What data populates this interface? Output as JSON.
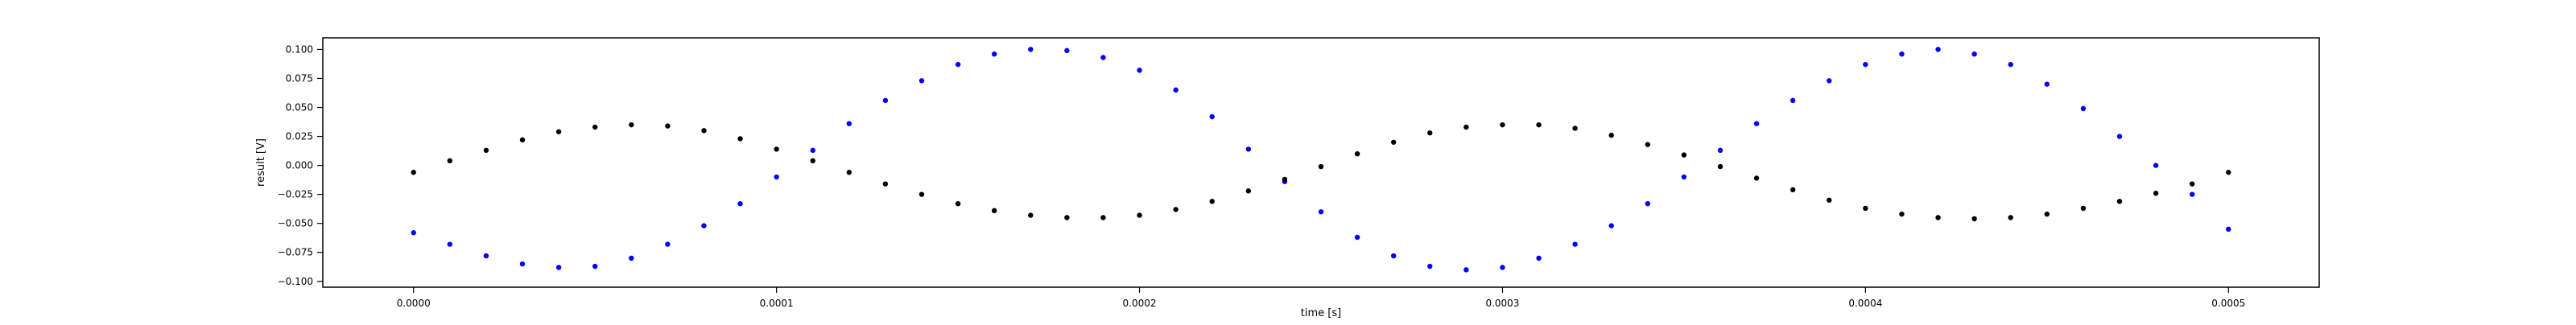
{
  "chart_data": {
    "type": "scatter",
    "title": "",
    "xlabel": "time [s]",
    "ylabel": "result [V]",
    "xlim": [
      -2.5e-05,
      0.000525
    ],
    "ylim": [
      -0.105,
      0.11
    ],
    "x_ticks": [
      "0.0000",
      "0.0001",
      "0.0002",
      "0.0003",
      "0.0004",
      "0.0005"
    ],
    "y_ticks": [
      "0.100",
      "0.075",
      "0.050",
      "0.025",
      "0.000",
      "−0.025",
      "−0.050",
      "−0.075",
      "−0.100"
    ],
    "grid": false,
    "legend": "none",
    "series": [
      {
        "color": "#0000ff",
        "marker": "dot",
        "x": [
          0.0,
          1e-05,
          2e-05,
          3e-05,
          4e-05,
          5e-05,
          6e-05,
          7e-05,
          8e-05,
          9e-05,
          0.0001,
          0.00011,
          0.00012,
          0.00013,
          0.00014,
          0.00015,
          0.00016,
          0.00017,
          0.00018,
          0.00019,
          0.0002,
          0.00021,
          0.00022,
          0.00023,
          0.00024,
          0.00025,
          0.00026,
          0.00027,
          0.00028,
          0.00029,
          0.0003,
          0.00031,
          0.00032,
          0.00033,
          0.00034,
          0.00035,
          0.00036,
          0.00037,
          0.00038,
          0.00039,
          0.0004,
          0.00041,
          0.00042,
          0.00043,
          0.00044,
          0.00045,
          0.00046,
          0.00047,
          0.00048,
          0.00049,
          0.0005
        ],
        "y": [
          -0.058,
          -0.068,
          -0.078,
          -0.085,
          -0.088,
          -0.087,
          -0.08,
          -0.068,
          -0.052,
          -0.033,
          -0.01,
          0.013,
          0.036,
          0.056,
          0.073,
          0.087,
          0.096,
          0.1,
          0.099,
          0.093,
          0.082,
          0.065,
          0.042,
          0.014,
          -0.014,
          -0.04,
          -0.062,
          -0.078,
          -0.087,
          -0.09,
          -0.088,
          -0.08,
          -0.068,
          -0.052,
          -0.033,
          -0.01,
          0.013,
          0.036,
          0.056,
          0.073,
          0.087,
          0.096,
          0.1,
          0.096,
          0.087,
          0.07,
          0.049,
          0.025,
          0.0,
          -0.025,
          -0.055
        ]
      },
      {
        "color": "#000000",
        "marker": "dot",
        "x": [
          0.0,
          1e-05,
          2e-05,
          3e-05,
          4e-05,
          5e-05,
          6e-05,
          7e-05,
          8e-05,
          9e-05,
          0.0001,
          0.00011,
          0.00012,
          0.00013,
          0.00014,
          0.00015,
          0.00016,
          0.00017,
          0.00018,
          0.00019,
          0.0002,
          0.00021,
          0.00022,
          0.00023,
          0.00024,
          0.00025,
          0.00026,
          0.00027,
          0.00028,
          0.00029,
          0.0003,
          0.00031,
          0.00032,
          0.00033,
          0.00034,
          0.00035,
          0.00036,
          0.00037,
          0.00038,
          0.00039,
          0.0004,
          0.00041,
          0.00042,
          0.00043,
          0.00044,
          0.00045,
          0.00046,
          0.00047,
          0.00048,
          0.00049,
          0.0005
        ],
        "y": [
          -0.006,
          0.004,
          0.013,
          0.022,
          0.029,
          0.033,
          0.035,
          0.034,
          0.03,
          0.023,
          0.014,
          0.004,
          -0.006,
          -0.016,
          -0.025,
          -0.033,
          -0.039,
          -0.043,
          -0.045,
          -0.045,
          -0.043,
          -0.038,
          -0.031,
          -0.022,
          -0.012,
          -0.001,
          0.01,
          0.02,
          0.028,
          0.033,
          0.035,
          0.035,
          0.032,
          0.026,
          0.018,
          0.009,
          -0.001,
          -0.011,
          -0.021,
          -0.03,
          -0.037,
          -0.042,
          -0.045,
          -0.046,
          -0.045,
          -0.042,
          -0.037,
          -0.031,
          -0.024,
          -0.016,
          -0.006
        ]
      }
    ]
  }
}
